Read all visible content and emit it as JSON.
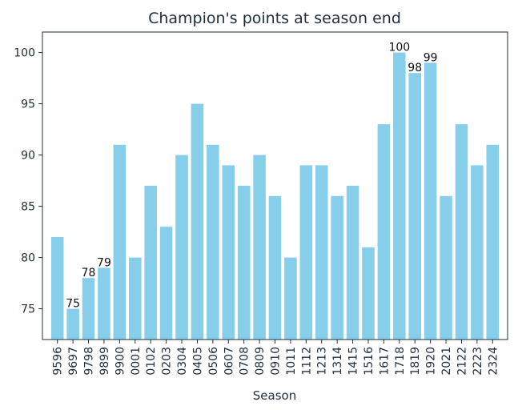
{
  "chart_data": {
    "type": "bar",
    "title": "Champion's points at season end",
    "xlabel": "Season",
    "ylabel": "",
    "categories": [
      "9596",
      "9697",
      "9798",
      "9899",
      "9900",
      "0001",
      "0102",
      "0203",
      "0304",
      "0405",
      "0506",
      "0607",
      "0708",
      "0809",
      "0910",
      "1011",
      "1112",
      "1213",
      "1314",
      "1415",
      "1516",
      "1617",
      "1718",
      "1819",
      "1920",
      "2021",
      "2122",
      "2223",
      "2324"
    ],
    "values": [
      82,
      75,
      78,
      79,
      91,
      80,
      87,
      83,
      90,
      95,
      91,
      89,
      87,
      90,
      86,
      80,
      89,
      89,
      86,
      87,
      81,
      93,
      100,
      98,
      99,
      86,
      93,
      89,
      91
    ],
    "data_labels": [
      "",
      "75",
      "78",
      "79",
      "",
      "",
      "",
      "",
      "",
      "",
      "",
      "",
      "",
      "",
      "",
      "",
      "",
      "",
      "",
      "",
      "",
      "",
      "100",
      "98",
      "99",
      "",
      "",
      "",
      ""
    ],
    "ylim": [
      72,
      102
    ],
    "yticks": [
      75,
      80,
      85,
      90,
      95,
      100
    ],
    "grid": false,
    "bar_color": "#87ceeb"
  }
}
